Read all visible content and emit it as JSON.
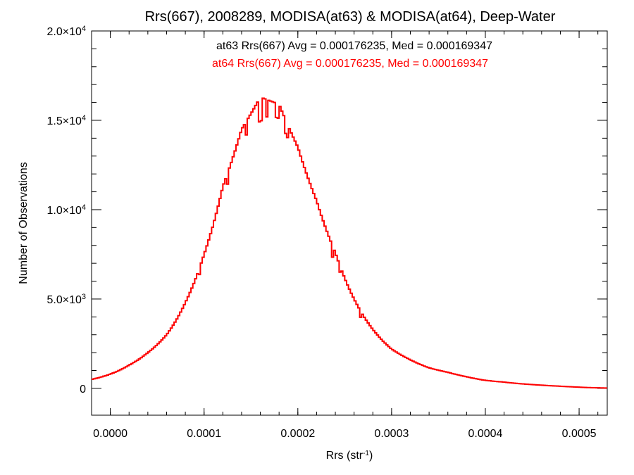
{
  "chart_data": {
    "type": "histogram",
    "title": "Rrs(667), 2008289, MODISA(at63) & MODISA(at64), Deep-Water",
    "xlabel": {
      "main": "Rrs (str",
      "sup": "-1",
      "close": ")"
    },
    "ylabel": "Number of Observations",
    "xlim": [
      -2e-05,
      0.00053
    ],
    "ylim": [
      -1500,
      20000
    ],
    "x_ticks": [
      {
        "value": 0.0,
        "label": "0.0000"
      },
      {
        "value": 0.0001,
        "label": "0.0001"
      },
      {
        "value": 0.0002,
        "label": "0.0002"
      },
      {
        "value": 0.0003,
        "label": "0.0003"
      },
      {
        "value": 0.0004,
        "label": "0.0004"
      },
      {
        "value": 0.0005,
        "label": "0.0005"
      }
    ],
    "y_ticks": [
      {
        "value": 0,
        "mantissa": "0",
        "exp": ""
      },
      {
        "value": 5000,
        "mantissa": "5.0×10",
        "exp": "3"
      },
      {
        "value": 10000,
        "mantissa": "1.0×10",
        "exp": "4"
      },
      {
        "value": 15000,
        "mantissa": "1.5×10",
        "exp": "4"
      },
      {
        "value": 20000,
        "mantissa": "2.0×10",
        "exp": "4"
      }
    ],
    "annotations": [
      {
        "text": "at63 Rrs(667) Avg = 0.000176235, Med = 0.000169347",
        "color": "#000000"
      },
      {
        "text": "at64 Rrs(667) Avg = 0.000176235, Med = 0.000169347",
        "color": "#ff0000"
      }
    ],
    "series": [
      {
        "name": "at63",
        "color": "#000000",
        "x": [
          -2e-05,
          0.0,
          2e-05,
          4e-05,
          6e-05,
          8e-05,
          0.0001,
          0.00012,
          0.00014,
          0.00016,
          0.00018,
          0.0002,
          0.00022,
          0.00024,
          0.00026,
          0.00028,
          0.0003,
          0.00032,
          0.00034,
          0.00036,
          0.00038,
          0.0004,
          0.00042,
          0.00044,
          0.00046,
          0.00048,
          0.0005,
          0.00052,
          0.00053
        ],
        "y": [
          500,
          800,
          1300,
          2000,
          3000,
          4800,
          7500,
          11300,
          14500,
          16300,
          15900,
          13500,
          10500,
          7600,
          5000,
          3300,
          2200,
          1600,
          1150,
          900,
          650,
          450,
          350,
          250,
          180,
          120,
          70,
          30,
          20
        ]
      },
      {
        "name": "at64",
        "color": "#ff0000",
        "x": [
          -2e-05,
          0.0,
          2e-05,
          4e-05,
          6e-05,
          8e-05,
          0.0001,
          0.00012,
          0.00014,
          0.00016,
          0.00018,
          0.0002,
          0.00022,
          0.00024,
          0.00026,
          0.00028,
          0.0003,
          0.00032,
          0.00034,
          0.00036,
          0.00038,
          0.0004,
          0.00042,
          0.00044,
          0.00046,
          0.00048,
          0.0005,
          0.00052,
          0.00053
        ],
        "y": [
          500,
          800,
          1300,
          2000,
          3000,
          4800,
          7500,
          11300,
          14500,
          16300,
          15900,
          13500,
          10500,
          7600,
          5000,
          3300,
          2200,
          1600,
          1150,
          900,
          650,
          450,
          350,
          250,
          180,
          120,
          70,
          30,
          20
        ]
      }
    ],
    "dips": [
      {
        "x": 0.00016,
        "frac": 0.08
      },
      {
        "x": 0.000167,
        "frac": 0.06
      },
      {
        "x": 0.000145,
        "frac": 0.05
      },
      {
        "x": 0.000178,
        "frac": 0.05
      },
      {
        "x": 0.000188,
        "frac": 0.05
      },
      {
        "x": 0.000125,
        "frac": 0.05
      },
      {
        "x": 0.000237,
        "frac": 0.08
      },
      {
        "x": 0.000267,
        "frac": 0.08
      },
      {
        "x": 9.5e-05,
        "frac": 0.05
      },
      {
        "x": 0.000245,
        "frac": 0.05
      }
    ]
  }
}
